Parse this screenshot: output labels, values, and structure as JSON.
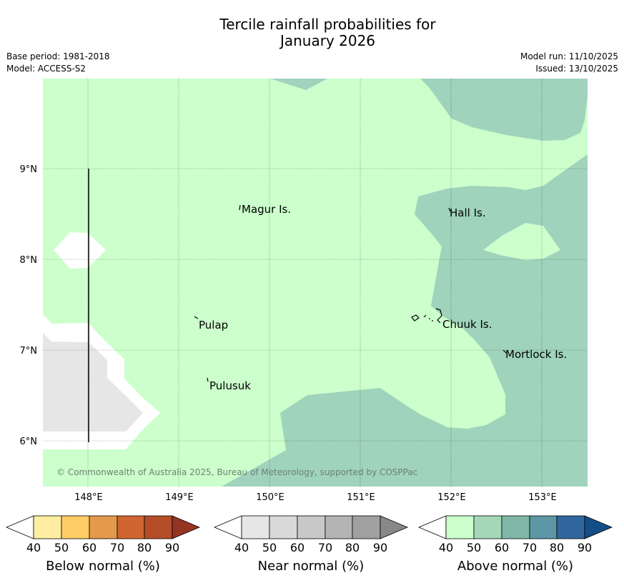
{
  "header": {
    "title_line1": "Tercile rainfall probabilities for",
    "title_line2": "January 2026",
    "base_period": "Base period: 1981-2018",
    "model": "Model: ACCESS-S2",
    "model_run": "Model run: 11/10/2025",
    "issued": "Issued: 13/10/2025"
  },
  "map": {
    "copyright": "© Commonwealth of Australia 2025, Bureau of Meteorology, supported by COSPPac",
    "latitude_labels": [
      "9°N",
      "8°N",
      "7°N",
      "6°N"
    ],
    "longitude_labels": [
      "148°E",
      "149°E",
      "150°E",
      "151°E",
      "152°E",
      "153°E"
    ],
    "places": {
      "magur": "Magur Is.",
      "hall": "Hall Is.",
      "pulap": "Pulap",
      "chuuk": "Chuuk Is.",
      "mortlock": "Mortlock Is.",
      "pulusuk": "Pulusuk"
    },
    "colors": {
      "above_40_50": "#ccffcc",
      "above_50_60": "#9fd3bb",
      "near_50_60": "#e6e6e6",
      "background": "#ffffff"
    }
  },
  "legend": {
    "below": {
      "title": "Below normal (%)",
      "ticks": [
        "40",
        "50",
        "60",
        "70",
        "80",
        "90"
      ],
      "colors": [
        "#ffffff",
        "#ffeea1",
        "#ffcc66",
        "#e39a4a",
        "#d06532",
        "#b54d29",
        "#963422"
      ]
    },
    "near": {
      "title": "Near normal (%)",
      "ticks": [
        "40",
        "50",
        "60",
        "70",
        "80",
        "90"
      ],
      "colors": [
        "#ffffff",
        "#e6e6e6",
        "#d9d9d9",
        "#c8c8c8",
        "#b4b4b4",
        "#a0a0a0",
        "#888888"
      ]
    },
    "above": {
      "title": "Above normal (%)",
      "ticks": [
        "40",
        "50",
        "60",
        "70",
        "80",
        "90"
      ],
      "colors": [
        "#ffffff",
        "#ccffcc",
        "#a6d7b9",
        "#80b7a6",
        "#5d96a4",
        "#31679e",
        "#134e86"
      ]
    }
  }
}
